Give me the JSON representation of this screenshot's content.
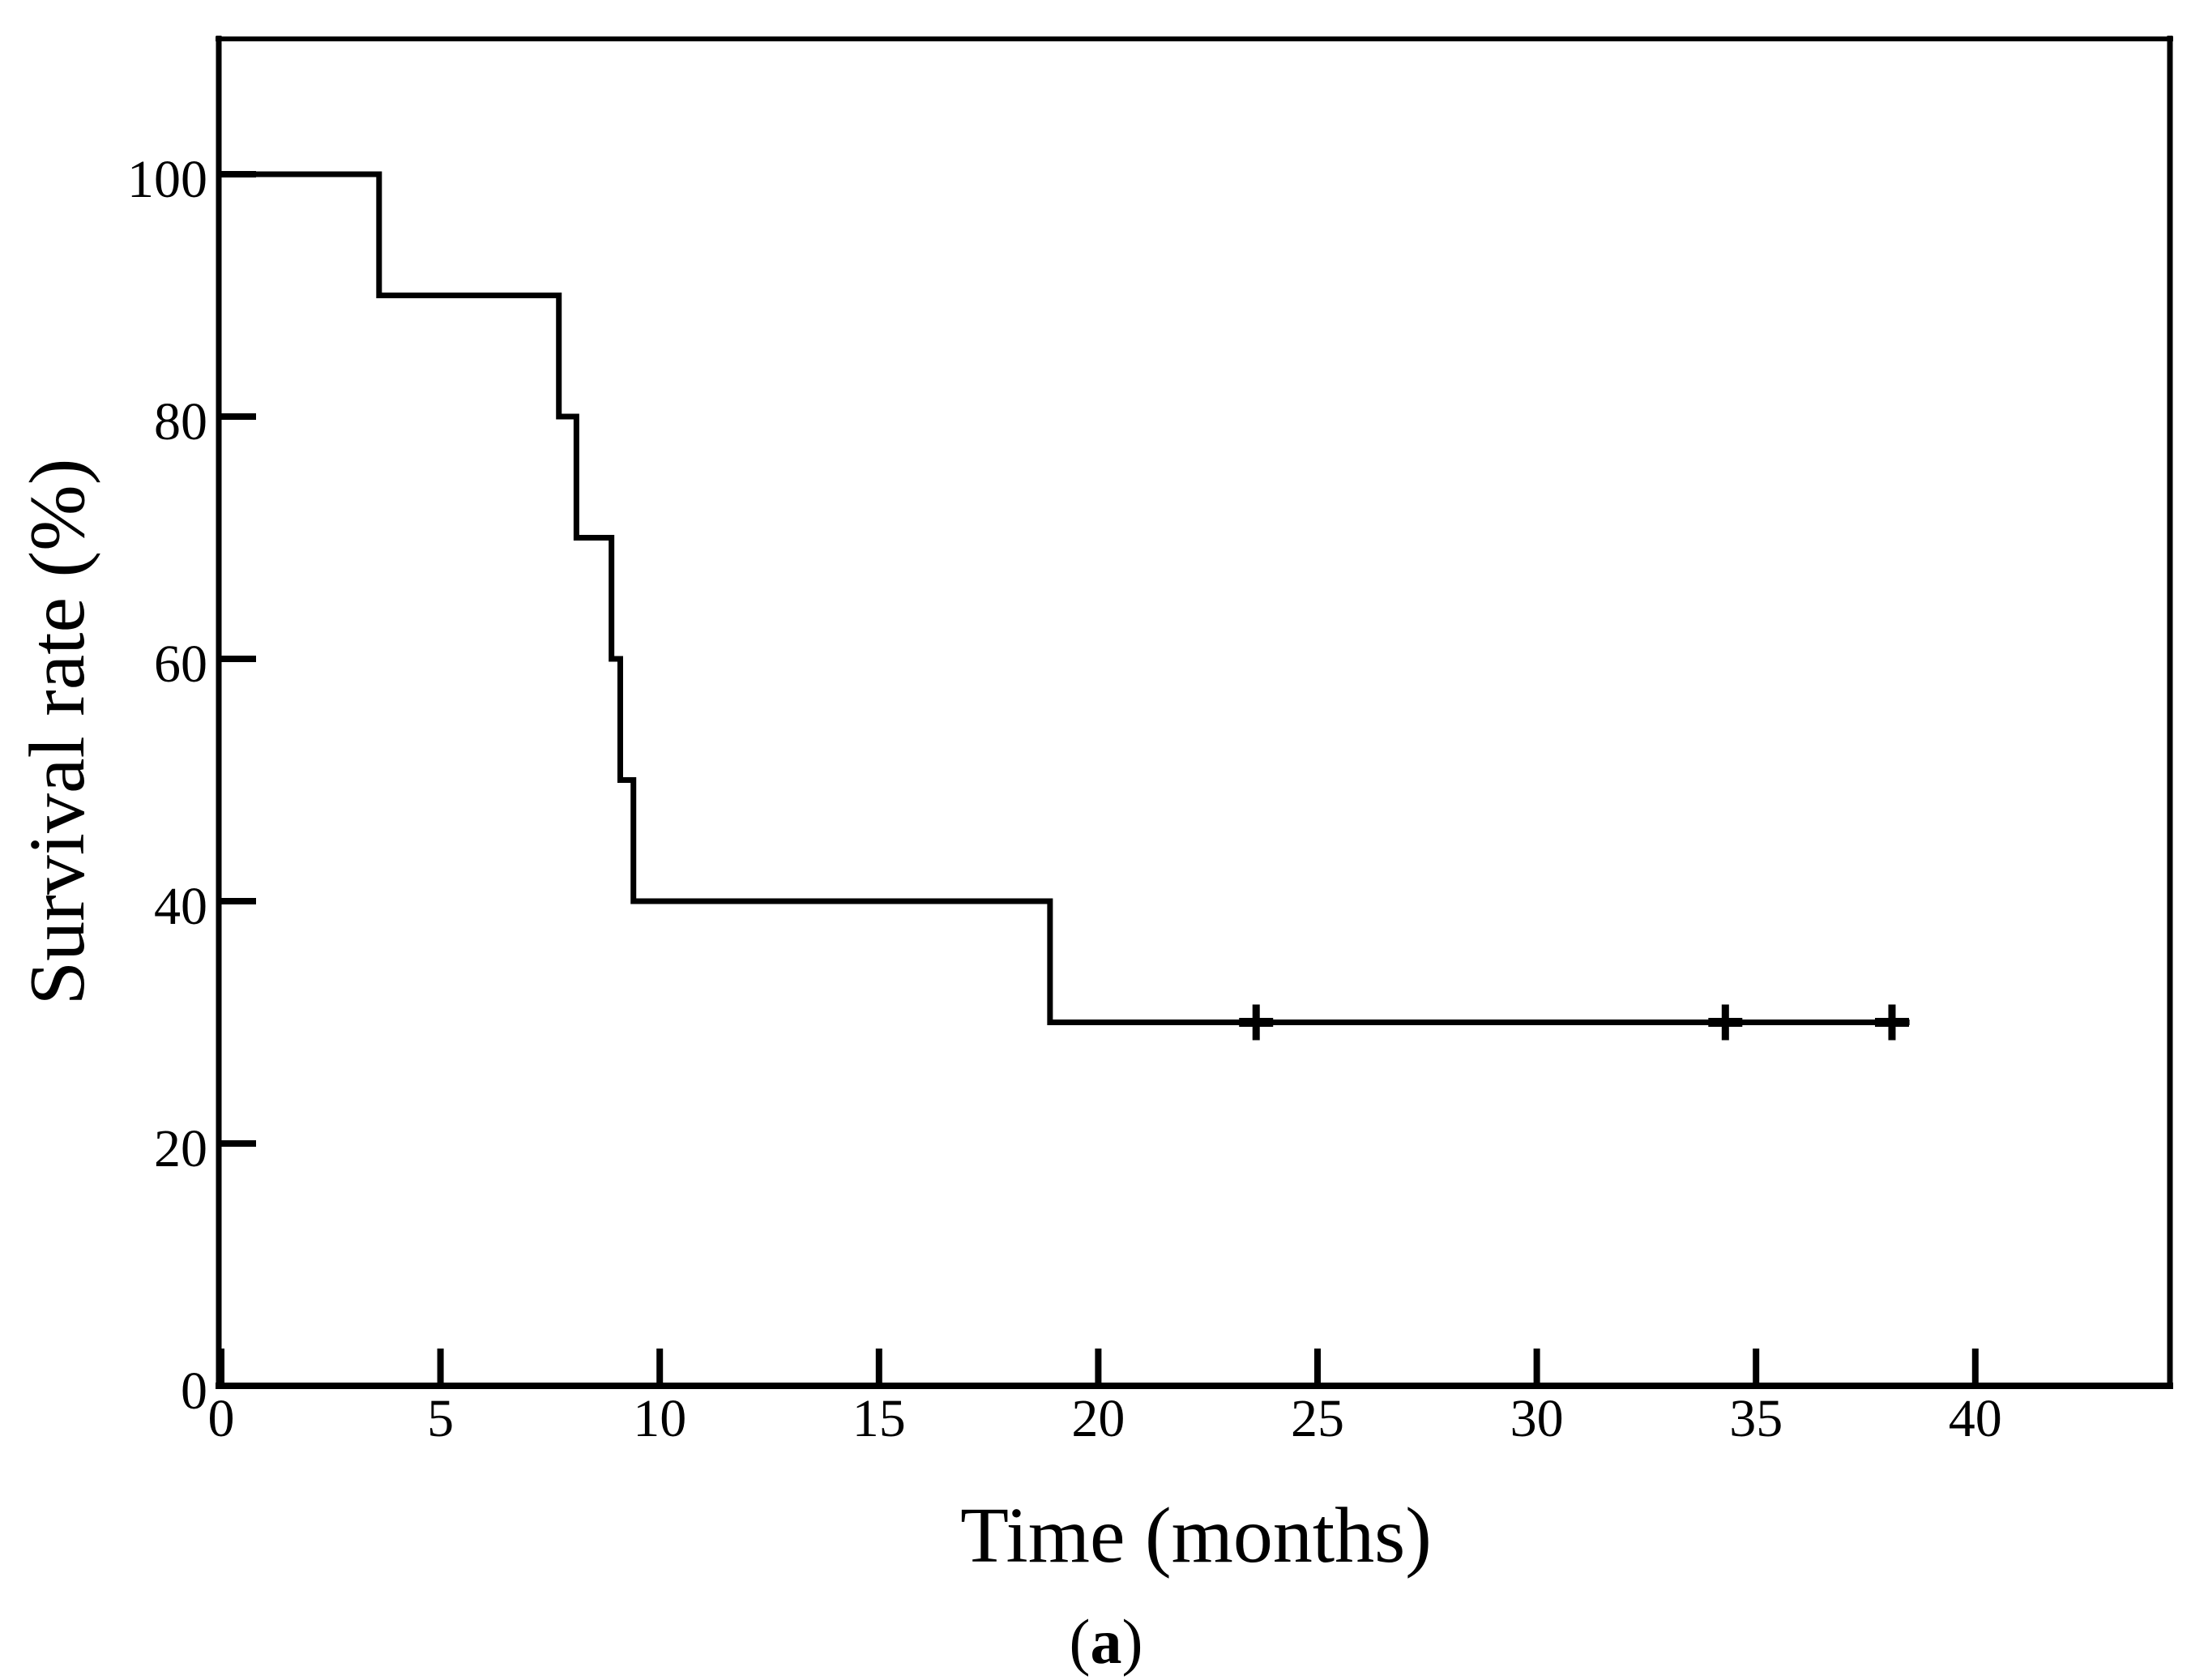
{
  "figure": {
    "background_color": "#ffffff",
    "ink_color": "#000000"
  },
  "caption": {
    "open": "(",
    "letter": "a",
    "close": ")"
  },
  "chart_data": {
    "type": "line",
    "subtype": "kaplan-meier-survival-step",
    "title": "",
    "xlabel": "Time (months)",
    "ylabel": "Survival rate (%)",
    "x_ticks": [
      0,
      5,
      10,
      15,
      20,
      25,
      30,
      35,
      40
    ],
    "y_ticks": [
      0,
      20,
      40,
      60,
      80,
      100
    ],
    "xlim": [
      0,
      44.5
    ],
    "ylim": [
      0,
      111
    ],
    "grid": false,
    "legend": "none",
    "frame": "full-box",
    "series": [
      {
        "name": "Survival",
        "color": "#000000",
        "step_times_months": [
          0,
          3.6,
          7.7,
          8.1,
          8.9,
          9.1,
          9.4,
          18.9
        ],
        "step_survival_pct": [
          100,
          90,
          80,
          70,
          60,
          50,
          40,
          30
        ],
        "curve_end_month": 38.5,
        "censor_times_months": [
          23.6,
          34.3,
          38.1
        ],
        "censor_survival_pct": [
          30,
          30,
          30
        ]
      }
    ]
  }
}
